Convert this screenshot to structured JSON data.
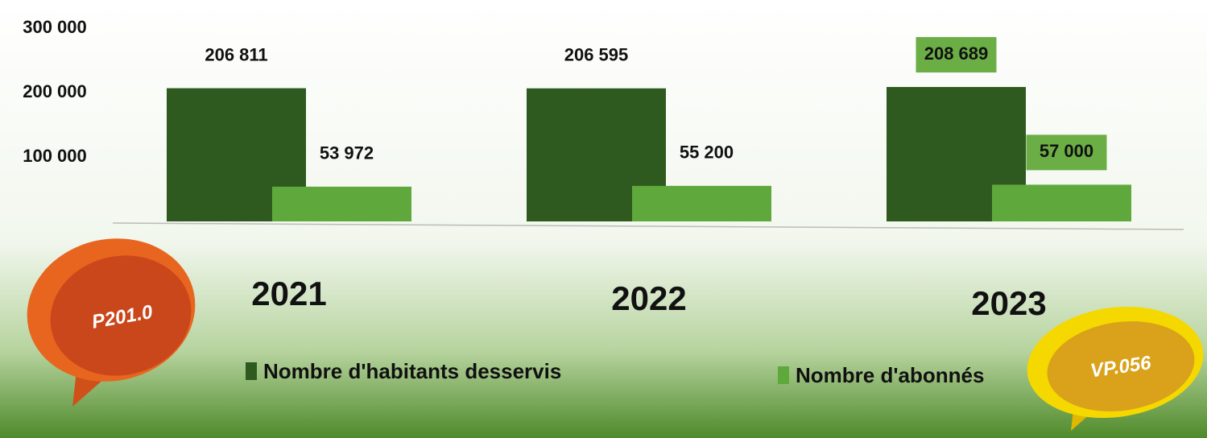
{
  "chart_data": {
    "type": "bar",
    "categories": [
      "2021",
      "2022",
      "2023"
    ],
    "series": [
      {
        "name": "Nombre d'habitants desservis",
        "color": "#2e5a1f",
        "values": [
          206811,
          206595,
          208689
        ],
        "value_labels": [
          "206 811",
          "206 595",
          "208 689"
        ]
      },
      {
        "name": "Nombre d'abonnés",
        "color": "#5ea83c",
        "values": [
          53972,
          55200,
          57000
        ],
        "value_labels": [
          "53 972",
          "55 200",
          "57 000"
        ]
      }
    ],
    "ylim": [
      0,
      300000
    ],
    "yticks": [
      {
        "value": 100000,
        "label": "100 000"
      },
      {
        "value": 200000,
        "label": "200 000"
      },
      {
        "value": 300000,
        "label": "300 000"
      }
    ],
    "annotations": [
      "P201.0",
      "VP.056"
    ]
  }
}
